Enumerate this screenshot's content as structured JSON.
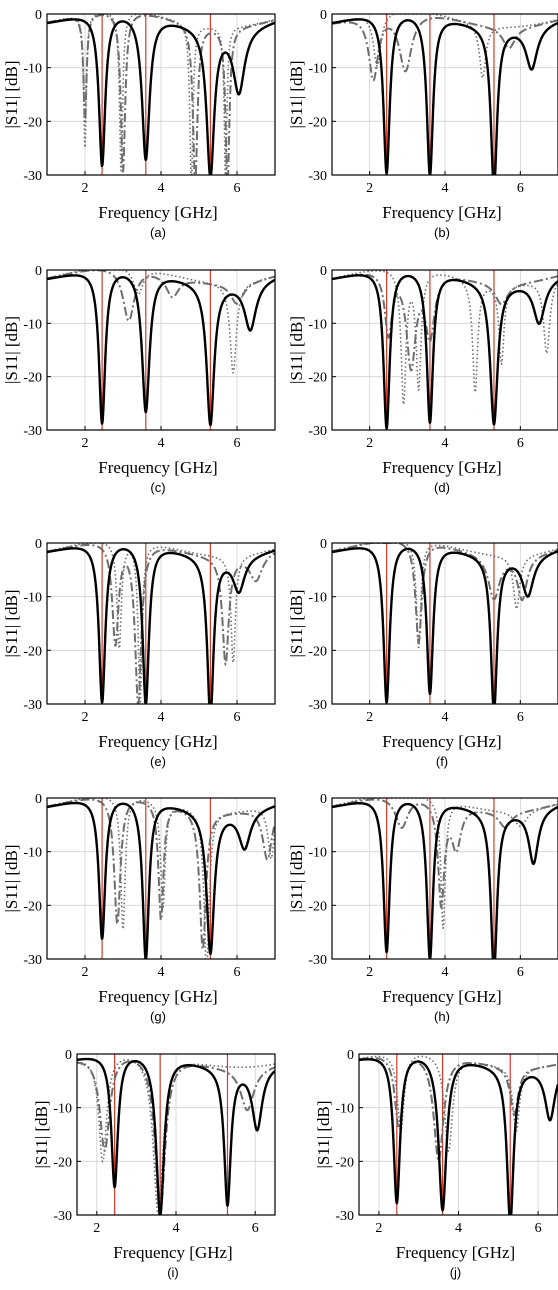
{
  "figure": {
    "colors": {
      "measured": "#000000",
      "simulated": "#6e6e6e",
      "reference_line": "#d43a2a",
      "grid": "#d0d0d0"
    }
  },
  "chart_data": [
    {
      "type": "line",
      "panel_label": "(a)",
      "xlabel": "Frequency [GHz]",
      "ylabel": "|S11| [dB]",
      "xlim": [
        1,
        7
      ],
      "ylim": [
        -30,
        0
      ],
      "xticks": [
        2,
        4,
        6
      ],
      "yticks": [
        0,
        -10,
        -20,
        -30
      ],
      "grid": true,
      "reference_lines_x": [
        2.45,
        3.6,
        5.3
      ],
      "series": [
        {
          "style": "solid",
          "dips": [
            [
              2.45,
              -28.5,
              0.1
            ],
            [
              3.6,
              -27,
              0.12
            ],
            [
              5.3,
              -27.5,
              0.12
            ],
            [
              6.05,
              -12,
              0.18
            ]
          ]
        },
        {
          "style": "dashdot",
          "dips": [
            [
              2.0,
              -20,
              0.05
            ],
            [
              3.0,
              -30,
              0.07
            ],
            [
              4.9,
              -30,
              0.07
            ],
            [
              5.75,
              -30,
              0.06
            ]
          ]
        },
        {
          "style": "dotted",
          "dips": [
            [
              2.0,
              -25,
              0.04
            ],
            [
              2.95,
              -30,
              0.05
            ],
            [
              4.8,
              -30,
              0.05
            ],
            [
              5.7,
              -30,
              0.04
            ]
          ]
        }
      ]
    },
    {
      "type": "line",
      "panel_label": "(b)",
      "xlabel": "Frequency [GHz]",
      "ylabel": "|S11| [dB]",
      "xlim": [
        1,
        7
      ],
      "ylim": [
        -30,
        0
      ],
      "xticks": [
        2,
        4,
        6
      ],
      "yticks": [
        0,
        -10,
        -20,
        -30
      ],
      "grid": true,
      "reference_lines_x": [
        2.45,
        3.6,
        5.3
      ],
      "series": [
        {
          "style": "solid",
          "dips": [
            [
              2.45,
              -30,
              0.1
            ],
            [
              3.6,
              -30,
              0.1
            ],
            [
              5.3,
              -30,
              0.1
            ],
            [
              6.3,
              -8,
              0.18
            ]
          ]
        },
        {
          "style": "dashdot",
          "dips": [
            [
              2.1,
              -12,
              0.15
            ],
            [
              2.95,
              -11,
              0.2
            ],
            [
              5.7,
              -4,
              0.2
            ]
          ]
        },
        {
          "style": "dotted",
          "dips": [
            [
              2.2,
              -10,
              0.12
            ],
            [
              5.0,
              -10,
              0.1
            ]
          ]
        }
      ]
    },
    {
      "type": "line",
      "panel_label": "(c)",
      "xlabel": "Frequency [GHz]",
      "ylabel": "|S11| [dB]",
      "xlim": [
        1,
        7
      ],
      "ylim": [
        -30,
        0
      ],
      "xticks": [
        2,
        4,
        6
      ],
      "yticks": [
        0,
        -10,
        -20,
        -30
      ],
      "grid": true,
      "reference_lines_x": [
        2.45,
        3.6,
        5.3
      ],
      "series": [
        {
          "style": "solid",
          "dips": [
            [
              2.45,
              -29,
              0.1
            ],
            [
              3.6,
              -26.5,
              0.12
            ],
            [
              5.3,
              -26.5,
              0.12
            ],
            [
              6.35,
              -9,
              0.18
            ]
          ]
        },
        {
          "style": "dashdot",
          "dips": [
            [
              3.15,
              -10,
              0.18
            ],
            [
              4.3,
              -4,
              0.2
            ],
            [
              6.0,
              -4,
              0.2
            ]
          ]
        },
        {
          "style": "dotted",
          "dips": [
            [
              5.9,
              -17,
              0.1
            ],
            [
              3.4,
              -5,
              0.15
            ]
          ]
        }
      ]
    },
    {
      "type": "line",
      "panel_label": "(d)",
      "xlabel": "Frequency [GHz]",
      "ylabel": "|S11| [dB]",
      "xlim": [
        1,
        7
      ],
      "ylim": [
        -30,
        0
      ],
      "xticks": [
        2,
        4,
        6
      ],
      "yticks": [
        0,
        -10,
        -20,
        -30
      ],
      "grid": true,
      "reference_lines_x": [
        2.45,
        3.6,
        5.3
      ],
      "series": [
        {
          "style": "solid",
          "dips": [
            [
              2.45,
              -30,
              0.1
            ],
            [
              3.6,
              -28.5,
              0.1
            ],
            [
              5.3,
              -26.5,
              0.12
            ],
            [
              6.5,
              -8,
              0.18
            ]
          ]
        },
        {
          "style": "dashdot",
          "dips": [
            [
              2.5,
              -12,
              0.12
            ],
            [
              3.1,
              -18,
              0.15
            ],
            [
              3.6,
              -12,
              0.15
            ],
            [
              5.5,
              -4,
              0.2
            ]
          ]
        },
        {
          "style": "dotted",
          "dips": [
            [
              2.9,
              -25,
              0.08
            ],
            [
              3.3,
              -22,
              0.08
            ],
            [
              4.8,
              -21,
              0.08
            ],
            [
              5.5,
              -15,
              0.08
            ],
            [
              6.7,
              -14,
              0.1
            ]
          ]
        }
      ]
    },
    {
      "type": "line",
      "panel_label": "(e)",
      "xlabel": "Frequency [GHz]",
      "ylabel": "|S11| [dB]",
      "xlim": [
        1,
        7
      ],
      "ylim": [
        -30,
        0
      ],
      "xticks": [
        2,
        4,
        6
      ],
      "yticks": [
        0,
        -10,
        -20,
        -30
      ],
      "grid": true,
      "reference_lines_x": [
        2.45,
        3.6,
        5.3
      ],
      "series": [
        {
          "style": "solid",
          "dips": [
            [
              2.45,
              -30,
              0.1
            ],
            [
              3.6,
              -30,
              0.1
            ],
            [
              5.3,
              -30,
              0.1
            ],
            [
              6.05,
              -6.5,
              0.18
            ]
          ]
        },
        {
          "style": "dashdot",
          "dips": [
            [
              2.8,
              -19,
              0.1
            ],
            [
              3.4,
              -30,
              0.1
            ],
            [
              5.7,
              -20,
              0.1
            ],
            [
              6.5,
              -5,
              0.2
            ]
          ]
        },
        {
          "style": "dotted",
          "dips": [
            [
              2.9,
              -20,
              0.07
            ],
            [
              3.45,
              -30,
              0.06
            ],
            [
              5.9,
              -20,
              0.07
            ]
          ]
        }
      ]
    },
    {
      "type": "line",
      "panel_label": "(f)",
      "xlabel": "Frequency [GHz]",
      "ylabel": "|S11| [dB]",
      "xlim": [
        1,
        7
      ],
      "ylim": [
        -30,
        0
      ],
      "xticks": [
        2,
        4,
        6
      ],
      "yticks": [
        0,
        -10,
        -20,
        -30
      ],
      "grid": true,
      "reference_lines_x": [
        2.45,
        3.6,
        5.3
      ],
      "series": [
        {
          "style": "solid",
          "dips": [
            [
              2.45,
              -30,
              0.1
            ],
            [
              3.6,
              -28,
              0.1
            ],
            [
              5.3,
              -29,
              0.1
            ],
            [
              6.2,
              -7.5,
              0.18
            ]
          ]
        },
        {
          "style": "dashdot",
          "dips": [
            [
              3.3,
              -19,
              0.1
            ],
            [
              5.3,
              -8,
              0.18
            ],
            [
              6.05,
              -8,
              0.15
            ]
          ]
        },
        {
          "style": "dotted",
          "dips": [
            [
              3.3,
              -20,
              0.07
            ],
            [
              5.9,
              -10,
              0.1
            ]
          ]
        }
      ]
    },
    {
      "type": "line",
      "panel_label": "(g)",
      "xlabel": "Frequency [GHz]",
      "ylabel": "|S11| [dB]",
      "xlim": [
        1,
        7
      ],
      "ylim": [
        -30,
        0
      ],
      "xticks": [
        2,
        4,
        6
      ],
      "yticks": [
        0,
        -10,
        -20,
        -30
      ],
      "grid": true,
      "reference_lines_x": [
        2.45,
        3.6,
        5.3
      ],
      "series": [
        {
          "style": "solid",
          "dips": [
            [
              2.45,
              -26.5,
              0.1
            ],
            [
              3.6,
              -30,
              0.1
            ],
            [
              5.3,
              -26.5,
              0.12
            ],
            [
              6.2,
              -7,
              0.18
            ]
          ]
        },
        {
          "style": "dashdot",
          "dips": [
            [
              2.85,
              -24,
              0.1
            ],
            [
              4.0,
              -22,
              0.08
            ],
            [
              5.1,
              -26,
              0.1
            ],
            [
              6.8,
              -10,
              0.15
            ]
          ]
        },
        {
          "style": "dotted",
          "dips": [
            [
              3.0,
              -25,
              0.07
            ],
            [
              4.05,
              -20,
              0.07
            ],
            [
              5.2,
              -30,
              0.08
            ],
            [
              6.9,
              -10,
              0.1
            ]
          ]
        }
      ]
    },
    {
      "type": "line",
      "panel_label": "(h)",
      "xlabel": "Frequency [GHz]",
      "ylabel": "|S11| [dB]",
      "xlim": [
        1,
        7
      ],
      "ylim": [
        -30,
        0
      ],
      "xticks": [
        2,
        4,
        6
      ],
      "yticks": [
        0,
        -10,
        -20,
        -30
      ],
      "grid": true,
      "reference_lines_x": [
        2.45,
        3.6,
        5.3
      ],
      "series": [
        {
          "style": "solid",
          "dips": [
            [
              2.45,
              -29,
              0.1
            ],
            [
              3.6,
              -30,
              0.1
            ],
            [
              5.3,
              -30,
              0.1
            ],
            [
              6.35,
              -10,
              0.15
            ]
          ]
        },
        {
          "style": "dashdot",
          "dips": [
            [
              2.85,
              -6,
              0.2
            ],
            [
              3.9,
              -19,
              0.1
            ],
            [
              4.3,
              -8,
              0.15
            ],
            [
              5.6,
              -3,
              0.2
            ]
          ]
        },
        {
          "style": "dotted",
          "dips": [
            [
              3.95,
              -24,
              0.07
            ],
            [
              6.0,
              -3,
              0.2
            ]
          ]
        }
      ]
    },
    {
      "type": "line",
      "panel_label": "(i)",
      "xlabel": "Frequency [GHz]",
      "ylabel": "|S11| [dB]",
      "xlim": [
        1.5,
        6.5
      ],
      "ylim": [
        -30,
        0
      ],
      "xticks": [
        2,
        4,
        6
      ],
      "yticks": [
        0,
        -10,
        -20,
        -30
      ],
      "grid": true,
      "reference_lines_x": [
        2.45,
        3.6,
        5.3
      ],
      "series": [
        {
          "style": "solid",
          "dips": [
            [
              2.45,
              -25,
              0.1
            ],
            [
              3.6,
              -30,
              0.12
            ],
            [
              5.3,
              -25.5,
              0.1
            ],
            [
              6.05,
              -11.5,
              0.15
            ]
          ]
        },
        {
          "style": "dashdot",
          "dips": [
            [
              2.2,
              -18,
              0.15
            ],
            [
              3.6,
              -30,
              0.15
            ],
            [
              5.8,
              -8,
              0.2
            ]
          ]
        },
        {
          "style": "dotted",
          "dips": [
            [
              2.15,
              -20,
              0.12
            ],
            [
              3.55,
              -30,
              0.15
            ]
          ]
        }
      ]
    },
    {
      "type": "line",
      "panel_label": "(j)",
      "xlabel": "Frequency [GHz]",
      "ylabel": "|S11| [dB]",
      "xlim": [
        1.5,
        6.5
      ],
      "ylim": [
        -30,
        0
      ],
      "xticks": [
        2,
        4,
        6
      ],
      "yticks": [
        0,
        -10,
        -20,
        -30
      ],
      "grid": true,
      "reference_lines_x": [
        2.45,
        3.6,
        5.3
      ],
      "series": [
        {
          "style": "solid",
          "dips": [
            [
              2.45,
              -28,
              0.1
            ],
            [
              3.6,
              -29,
              0.12
            ],
            [
              5.3,
              -29,
              0.1
            ],
            [
              6.3,
              -10,
              0.15
            ]
          ]
        },
        {
          "style": "dashdot",
          "dips": [
            [
              2.5,
              -14,
              0.12
            ],
            [
              3.5,
              -20,
              0.15
            ],
            [
              5.4,
              -9,
              0.12
            ]
          ]
        },
        {
          "style": "dotted",
          "dips": [
            [
              2.55,
              -15,
              0.1
            ],
            [
              3.75,
              -18,
              0.12
            ],
            [
              5.45,
              -12,
              0.1
            ]
          ]
        }
      ]
    }
  ]
}
